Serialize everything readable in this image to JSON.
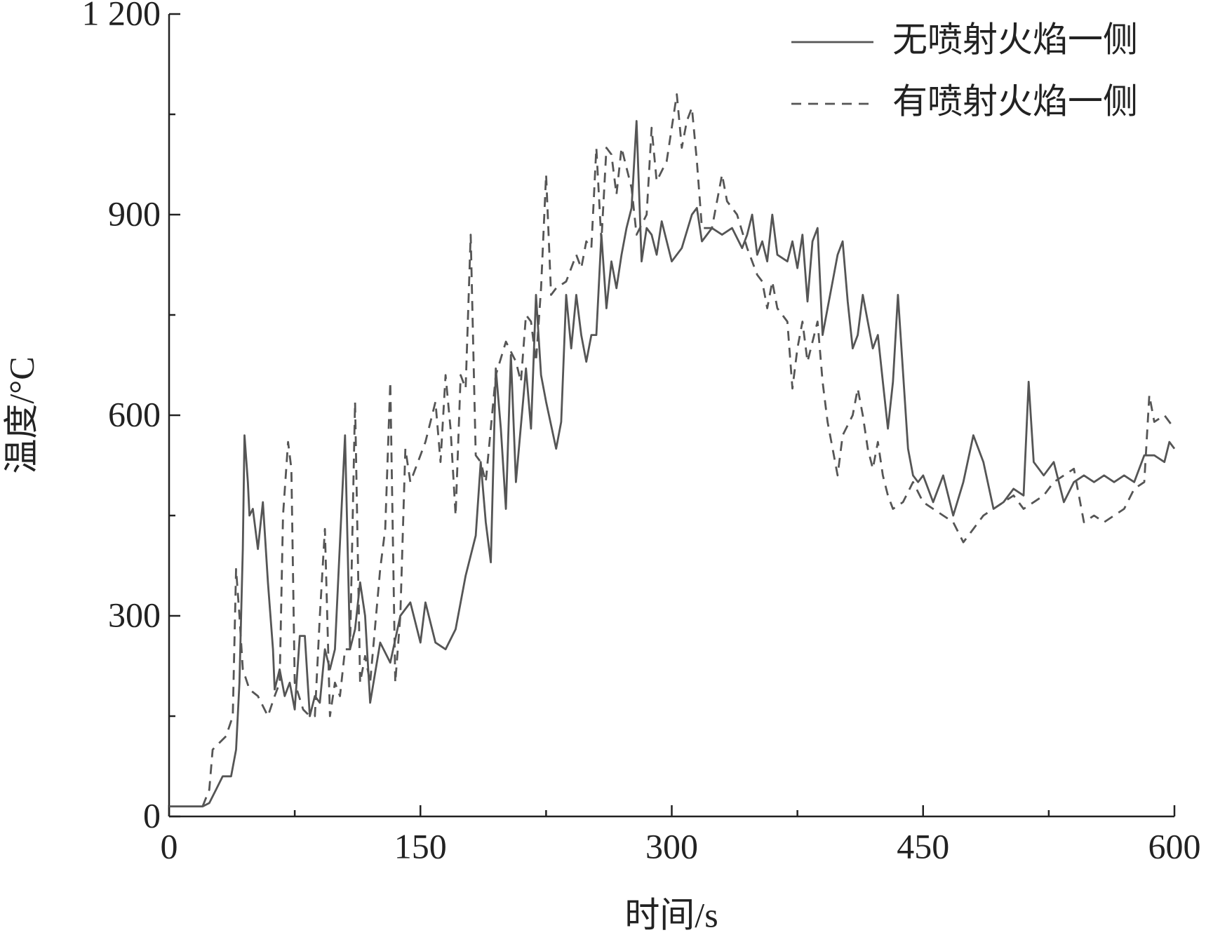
{
  "chart_data": {
    "type": "line",
    "xlabel": "时间/s",
    "ylabel": "温度/°C",
    "xlim": [
      0,
      600
    ],
    "ylim": [
      0,
      1200
    ],
    "xticks": [
      0,
      150,
      300,
      450,
      600
    ],
    "xticks_minor": [
      75,
      225,
      375,
      525
    ],
    "yticks": [
      0,
      300,
      600,
      900,
      {
        "value": 1200,
        "label": "1 200"
      }
    ],
    "yticks_minor": [
      150,
      450,
      750,
      1050
    ],
    "legend": "upper right",
    "series": [
      {
        "name": "无喷射火焰一侧",
        "color": "#555555",
        "dash": "solid",
        "x": [
          0,
          20,
          24,
          28,
          32,
          37,
          40,
          42,
          44,
          45,
          47,
          48,
          50,
          53,
          56,
          59,
          62,
          63,
          66,
          69,
          72,
          75,
          78,
          81,
          84,
          87,
          90,
          93,
          96,
          99,
          105,
          108,
          111,
          114,
          117,
          120,
          126,
          132,
          138,
          144,
          150,
          153,
          159,
          165,
          171,
          177,
          183,
          186,
          189,
          192,
          195,
          198,
          201,
          204,
          207,
          213,
          216,
          219,
          222,
          225,
          231,
          234,
          237,
          240,
          243,
          246,
          249,
          252,
          255,
          258,
          261,
          264,
          267,
          270,
          273,
          276,
          279,
          282,
          285,
          288,
          291,
          294,
          300,
          306,
          312,
          315,
          318,
          324,
          330,
          336,
          342,
          345,
          348,
          351,
          354,
          357,
          360,
          363,
          369,
          372,
          375,
          378,
          381,
          384,
          387,
          390,
          393,
          396,
          399,
          402,
          405,
          408,
          411,
          414,
          417,
          420,
          423,
          426,
          429,
          432,
          435,
          441,
          444,
          447,
          450,
          456,
          462,
          468,
          474,
          480,
          486,
          492,
          498,
          504,
          510,
          513,
          516,
          522,
          528,
          534,
          540,
          546,
          552,
          558,
          564,
          570,
          576,
          582,
          588,
          594,
          597,
          600
        ],
        "values": [
          15,
          15,
          20,
          40,
          60,
          60,
          100,
          200,
          400,
          570,
          500,
          450,
          460,
          400,
          470,
          350,
          250,
          190,
          220,
          180,
          200,
          160,
          270,
          270,
          150,
          180,
          170,
          250,
          220,
          250,
          570,
          250,
          280,
          350,
          300,
          170,
          260,
          230,
          300,
          320,
          260,
          320,
          260,
          250,
          280,
          360,
          420,
          530,
          440,
          380,
          670,
          580,
          460,
          690,
          500,
          670,
          580,
          780,
          660,
          620,
          550,
          590,
          780,
          700,
          780,
          720,
          680,
          720,
          720,
          870,
          760,
          830,
          790,
          840,
          880,
          910,
          1040,
          830,
          880,
          870,
          840,
          890,
          830,
          850,
          900,
          910,
          860,
          880,
          870,
          880,
          850,
          870,
          900,
          840,
          860,
          830,
          900,
          840,
          830,
          860,
          820,
          870,
          770,
          860,
          880,
          720,
          760,
          800,
          840,
          860,
          770,
          700,
          720,
          780,
          740,
          700,
          720,
          650,
          580,
          650,
          780,
          550,
          510,
          500,
          510,
          470,
          510,
          450,
          500,
          570,
          530,
          460,
          470,
          490,
          480,
          650,
          530,
          510,
          530,
          470,
          500,
          510,
          500,
          510,
          500,
          510,
          500,
          540,
          540,
          530,
          560,
          550
        ]
      },
      {
        "name": "有喷射火焰一侧",
        "color": "#555555",
        "dash": "dashed",
        "x": [
          20,
          24,
          26,
          30,
          34,
          38,
          40,
          42,
          44,
          48,
          53,
          59,
          63,
          66,
          68,
          71,
          73,
          75,
          80,
          84,
          87,
          90,
          93,
          96,
          99,
          102,
          105,
          108,
          111,
          114,
          117,
          120,
          126,
          129,
          132,
          135,
          138,
          141,
          144,
          147,
          153,
          159,
          162,
          165,
          168,
          171,
          174,
          177,
          180,
          183,
          186,
          189,
          195,
          201,
          207,
          210,
          213,
          216,
          219,
          222,
          225,
          228,
          231,
          237,
          243,
          246,
          249,
          252,
          255,
          258,
          261,
          264,
          267,
          270,
          276,
          279,
          285,
          288,
          291,
          297,
          303,
          306,
          309,
          312,
          315,
          318,
          324,
          330,
          333,
          339,
          345,
          351,
          354,
          357,
          360,
          363,
          369,
          372,
          375,
          378,
          381,
          387,
          390,
          393,
          396,
          399,
          402,
          408,
          411,
          414,
          417,
          420,
          423,
          426,
          429,
          432,
          438,
          444,
          450,
          456,
          462,
          468,
          474,
          480,
          486,
          492,
          498,
          504,
          510,
          516,
          522,
          528,
          534,
          540,
          546,
          552,
          558,
          564,
          570,
          576,
          582,
          585,
          588,
          594,
          600
        ],
        "values": [
          15,
          40,
          100,
          110,
          120,
          150,
          370,
          300,
          220,
          190,
          180,
          150,
          180,
          200,
          450,
          560,
          520,
          200,
          160,
          150,
          150,
          300,
          430,
          150,
          200,
          180,
          250,
          250,
          620,
          200,
          240,
          200,
          370,
          430,
          650,
          200,
          300,
          550,
          500,
          520,
          560,
          620,
          530,
          660,
          580,
          450,
          660,
          640,
          870,
          540,
          530,
          500,
          660,
          710,
          680,
          650,
          750,
          740,
          680,
          790,
          960,
          780,
          790,
          800,
          840,
          820,
          860,
          850,
          1000,
          860,
          1000,
          990,
          930,
          1000,
          940,
          870,
          900,
          1030,
          950,
          980,
          1080,
          1000,
          1040,
          1060,
          980,
          880,
          880,
          960,
          920,
          900,
          850,
          810,
          800,
          760,
          800,
          760,
          740,
          640,
          700,
          740,
          680,
          740,
          650,
          590,
          550,
          510,
          570,
          600,
          640,
          600,
          550,
          520,
          560,
          510,
          480,
          460,
          470,
          500,
          470,
          460,
          450,
          440,
          410,
          430,
          450,
          460,
          470,
          480,
          460,
          470,
          480,
          500,
          510,
          520,
          440,
          450,
          440,
          450,
          460,
          490,
          500,
          630,
          590,
          600,
          580
        ]
      }
    ]
  }
}
